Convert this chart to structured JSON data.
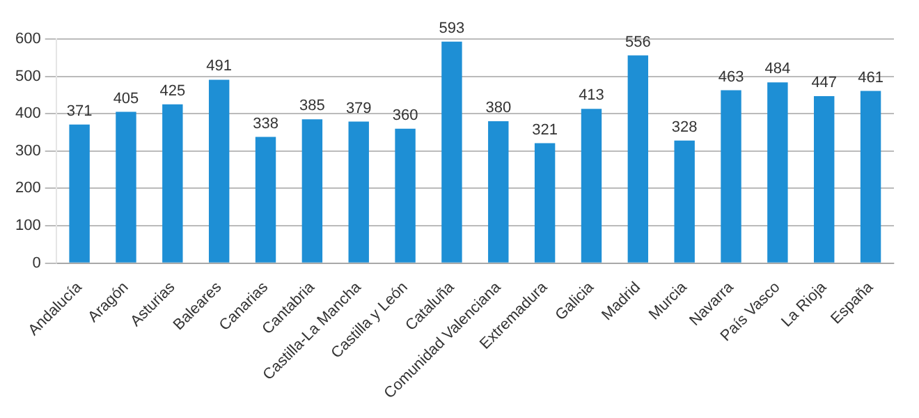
{
  "chart_data": {
    "type": "bar",
    "categories": [
      "Andalucía",
      "Aragón",
      "Asturias",
      "Baleares",
      "Canarias",
      "Cantabria",
      "Castilla-La Mancha",
      "Castilla y León",
      "Cataluña",
      "Comunidad Valenciana",
      "Extremadura",
      "Galicia",
      "Madrid",
      "Murcia",
      "Navarra",
      "País Vasco",
      "La Rioja",
      "España"
    ],
    "values": [
      371,
      405,
      425,
      491,
      338,
      385,
      379,
      360,
      593,
      380,
      321,
      413,
      556,
      328,
      463,
      484,
      447,
      461
    ],
    "color": "#1e8fd5",
    "ylim": [
      0,
      600
    ],
    "yticks": [
      0,
      100,
      200,
      300,
      400,
      500,
      600
    ],
    "grid": "y",
    "data_labels": true
  }
}
